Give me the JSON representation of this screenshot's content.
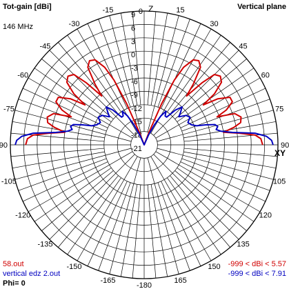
{
  "header": {
    "title": "Tot-gain [dBi]",
    "plane": "Vertical plane",
    "frequency": "146 MHz",
    "zenith_label": "Z",
    "horizon_label": "XY"
  },
  "footer": {
    "series1_file": "58.out",
    "series2_file": "vertical edz 2.out",
    "series1_range": "-999 < dBi < 5.57",
    "series2_range": "-999 < dBi < 7.91",
    "phi": "Phi= 0"
  },
  "colors": {
    "grid": "#000000",
    "background": "#ffffff",
    "series1": "#d00000",
    "series2": "#0000c0"
  },
  "chart_data": {
    "type": "polar",
    "title": "Tot-gain [dBi]",
    "subtitle": "Vertical plane",
    "angle_tick_labels": [
      "0",
      "15",
      "30",
      "45",
      "60",
      "75",
      "90",
      "105",
      "120",
      "135",
      "150",
      "165",
      "-180",
      "-165",
      "-150",
      "-135",
      "-120",
      "-105",
      "-90",
      "-75",
      "-60",
      "-45",
      "-30",
      "-15"
    ],
    "radial_tick_labels": [
      "9",
      "6",
      "3",
      "0",
      "-3",
      "-6",
      "-9",
      "-12",
      "-15",
      "-18",
      "-21"
    ],
    "radial_range_dbi": [
      -21,
      9
    ],
    "grid": true,
    "series": [
      {
        "name": "58.out",
        "color": "#d00000",
        "max_dbi": 5.57,
        "points": [
          [
            90,
            5.57
          ],
          [
            87,
            5.2
          ],
          [
            85,
            4.0
          ],
          [
            83,
            0.5
          ],
          [
            81,
            -3.0
          ],
          [
            79,
            -0.5
          ],
          [
            77,
            1.2
          ],
          [
            74,
            1.6
          ],
          [
            71,
            0.5
          ],
          [
            69,
            -3.5
          ],
          [
            67,
            -1.0
          ],
          [
            64,
            1.0
          ],
          [
            61,
            1.0
          ],
          [
            58,
            -1.5
          ],
          [
            56,
            -5.0
          ],
          [
            54,
            -1.5
          ],
          [
            51,
            1.3
          ],
          [
            48,
            2.0
          ],
          [
            45,
            1.3
          ],
          [
            43,
            -2.0
          ],
          [
            41,
            -6.5
          ],
          [
            39,
            -3.5
          ],
          [
            36,
            0.5
          ],
          [
            33,
            1.5
          ],
          [
            30,
            1.0
          ],
          [
            27,
            -1.5
          ],
          [
            25,
            -5.0
          ],
          [
            23,
            -11.0
          ],
          [
            21,
            -18.0
          ],
          [
            20,
            -21
          ],
          [
            -20,
            -21
          ],
          [
            -21,
            -18.0
          ],
          [
            -23,
            -11.0
          ],
          [
            -25,
            -5.0
          ],
          [
            -27,
            -1.5
          ],
          [
            -30,
            1.0
          ],
          [
            -33,
            1.5
          ],
          [
            -36,
            0.5
          ],
          [
            -39,
            -3.5
          ],
          [
            -41,
            -6.5
          ],
          [
            -43,
            -2.0
          ],
          [
            -45,
            1.3
          ],
          [
            -48,
            2.0
          ],
          [
            -51,
            1.3
          ],
          [
            -54,
            -1.5
          ],
          [
            -56,
            -5.0
          ],
          [
            -58,
            -1.5
          ],
          [
            -61,
            1.0
          ],
          [
            -64,
            1.0
          ],
          [
            -67,
            -1.0
          ],
          [
            -69,
            -3.5
          ],
          [
            -71,
            0.5
          ],
          [
            -74,
            1.6
          ],
          [
            -77,
            1.2
          ],
          [
            -79,
            -0.5
          ],
          [
            -81,
            -3.0
          ],
          [
            -83,
            0.5
          ],
          [
            -85,
            4.0
          ],
          [
            -87,
            5.2
          ],
          [
            -90,
            5.57
          ]
        ]
      },
      {
        "name": "vertical edz 2.out",
        "color": "#0000c0",
        "max_dbi": 7.91,
        "points": [
          [
            90,
            7.9
          ],
          [
            88,
            7.6
          ],
          [
            86,
            6.5
          ],
          [
            84,
            4.0
          ],
          [
            82,
            -1.0
          ],
          [
            80,
            -3.5
          ],
          [
            78,
            -4.5
          ],
          [
            76,
            -4.0
          ],
          [
            74,
            -4.5
          ],
          [
            72,
            -6.5
          ],
          [
            70,
            -8.5
          ],
          [
            67,
            -9.5
          ],
          [
            63,
            -10.0
          ],
          [
            59,
            -9.0
          ],
          [
            55,
            -9.5
          ],
          [
            51,
            -11.0
          ],
          [
            48,
            -10.0
          ],
          [
            45,
            -9.0
          ],
          [
            42,
            -10.5
          ],
          [
            39,
            -13.0
          ],
          [
            36,
            -13.0
          ],
          [
            33,
            -12.0
          ],
          [
            30,
            -13.5
          ],
          [
            27,
            -16.0
          ],
          [
            24,
            -18.5
          ],
          [
            22,
            -21
          ],
          [
            -22,
            -21
          ],
          [
            -24,
            -18.5
          ],
          [
            -27,
            -16.0
          ],
          [
            -30,
            -13.5
          ],
          [
            -33,
            -12.0
          ],
          [
            -36,
            -13.0
          ],
          [
            -39,
            -13.0
          ],
          [
            -42,
            -10.5
          ],
          [
            -45,
            -9.0
          ],
          [
            -48,
            -10.0
          ],
          [
            -51,
            -11.0
          ],
          [
            -55,
            -9.5
          ],
          [
            -59,
            -9.0
          ],
          [
            -63,
            -10.0
          ],
          [
            -67,
            -9.5
          ],
          [
            -70,
            -8.5
          ],
          [
            -72,
            -6.5
          ],
          [
            -74,
            -4.5
          ],
          [
            -76,
            -4.0
          ],
          [
            -78,
            -4.5
          ],
          [
            -80,
            -3.5
          ],
          [
            -82,
            -1.0
          ],
          [
            -84,
            4.0
          ],
          [
            -86,
            6.5
          ],
          [
            -88,
            7.6
          ],
          [
            -90,
            7.9
          ]
        ]
      }
    ]
  }
}
